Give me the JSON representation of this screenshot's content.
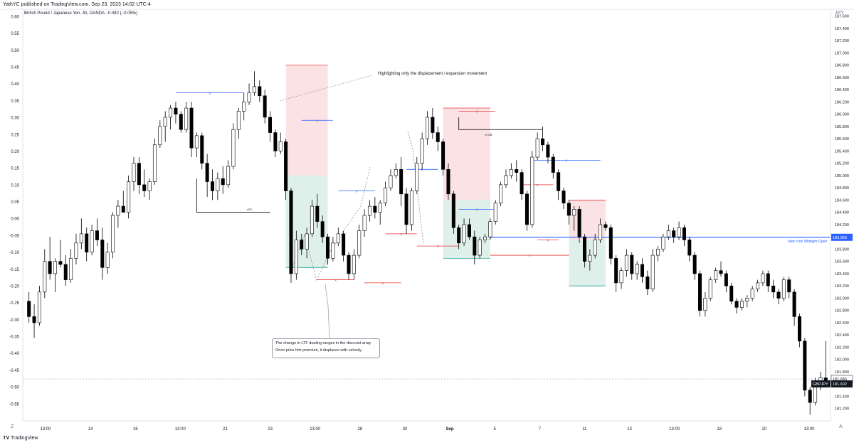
{
  "header": {
    "publisher": "YathYC published on TradingView.com, Sep 23, 2023 14:02 UTC-4"
  },
  "symbol_line": "British Pound / Japanese Yen, 4h, OANDA  −0.082 (−0.05%)",
  "currency": "JPY",
  "bottom_left": "Z",
  "bottom_right": "A",
  "footer": {
    "brand": "TradingView"
  },
  "colors": {
    "up": "#ffffff",
    "down": "#000000",
    "outline": "#000000",
    "premium": "#fbe2e4",
    "discount": "#dff0ea",
    "blue": "#2962ff",
    "red": "#e53935"
  },
  "annotations": {
    "top_note": "Highlighting only the displacement / expansion movement",
    "callout_line1": "The change in LTF dealing ranges in the discount array",
    "callout_line2": "Once price hits premium, it displaces with velocity",
    "ssl_label": "sSC",
    "ob_label": "+4 OB",
    "ny_label": "New York Midnight Open"
  },
  "chart_data": {
    "type": "candlestick",
    "title": "British Pound / Japanese Yen, 4h, OANDA",
    "left_axis": {
      "ylim": [
        -0.6,
        0.62
      ],
      "ticks": [
        "0.60",
        "0.55",
        "0.50",
        "0.45",
        "0.40",
        "0.35",
        "0.30",
        "0.25",
        "0.20",
        "0.15",
        "0.10",
        "0.05",
        "0.00",
        "-0.05",
        "-0.10",
        "-0.15",
        "-0.20",
        "-0.25",
        "-0.30",
        "-0.35",
        "-0.40",
        "-0.45",
        "-0.50",
        "-0.55"
      ]
    },
    "right_axis": {
      "ylim": [
        181.0,
        187.7
      ],
      "ticks": [
        "187.600",
        "187.400",
        "187.200",
        "187.000",
        "186.800",
        "186.600",
        "186.400",
        "186.200",
        "186.000",
        "185.800",
        "185.600",
        "185.400",
        "185.200",
        "185.000",
        "184.800",
        "184.600",
        "184.400",
        "184.200",
        "184.000",
        "183.800",
        "183.600",
        "183.400",
        "183.200",
        "183.000",
        "182.800",
        "182.600",
        "182.400",
        "182.200",
        "182.000",
        "181.800",
        "181.600",
        "181.400",
        "181.200"
      ]
    },
    "x_ticks": [
      "13:00",
      "14",
      "16",
      "13:00",
      "21",
      "23",
      "13:00",
      "28",
      "30",
      "Sep",
      "5",
      "7",
      "11",
      "13",
      "13:00",
      "18",
      "20",
      "13:00"
    ],
    "last_price": {
      "label": "GBPJPY",
      "value": "181.602"
    },
    "prev_price": "181.684",
    "ny_open_price": "183.993",
    "ohlc": [
      [
        182.95,
        183.1,
        182.6,
        182.7
      ],
      [
        182.7,
        182.9,
        182.35,
        182.6
      ],
      [
        182.6,
        183.2,
        182.55,
        183.1
      ],
      [
        183.1,
        183.8,
        183.0,
        183.6
      ],
      [
        183.6,
        184.0,
        183.3,
        183.4
      ],
      [
        183.4,
        183.65,
        183.1,
        183.6
      ],
      [
        183.6,
        183.95,
        183.5,
        183.55
      ],
      [
        183.55,
        183.7,
        183.2,
        183.3
      ],
      [
        183.3,
        183.8,
        183.25,
        183.65
      ],
      [
        183.65,
        184.05,
        183.55,
        183.9
      ],
      [
        183.9,
        184.3,
        183.8,
        184.05
      ],
      [
        184.05,
        184.15,
        183.6,
        183.75
      ],
      [
        183.75,
        184.2,
        183.7,
        184.1
      ],
      [
        184.1,
        184.3,
        183.85,
        183.95
      ],
      [
        183.95,
        184.15,
        183.3,
        183.5
      ],
      [
        183.5,
        183.9,
        183.4,
        183.75
      ],
      [
        183.75,
        184.4,
        183.65,
        184.35
      ],
      [
        184.35,
        184.6,
        184.15,
        184.5
      ],
      [
        184.5,
        184.75,
        184.4,
        184.4
      ],
      [
        184.4,
        185.0,
        184.3,
        184.9
      ],
      [
        184.9,
        185.3,
        184.75,
        185.2
      ],
      [
        185.2,
        185.3,
        184.7,
        184.85
      ],
      [
        184.85,
        185.1,
        184.65,
        184.75
      ],
      [
        184.75,
        184.95,
        184.6,
        184.9
      ],
      [
        184.9,
        185.6,
        184.85,
        185.5
      ],
      [
        185.5,
        185.9,
        185.45,
        185.8
      ],
      [
        185.8,
        186.05,
        185.55,
        185.95
      ],
      [
        185.95,
        186.15,
        185.75,
        186.1
      ],
      [
        186.1,
        186.2,
        185.85,
        186.0
      ],
      [
        186.0,
        186.05,
        185.7,
        185.75
      ],
      [
        185.75,
        186.2,
        185.7,
        186.1
      ],
      [
        186.1,
        186.2,
        185.3,
        185.45
      ],
      [
        185.45,
        185.7,
        185.3,
        185.65
      ],
      [
        185.65,
        185.7,
        185.1,
        185.2
      ],
      [
        185.2,
        185.35,
        184.65,
        184.9
      ],
      [
        184.9,
        185.1,
        184.6,
        184.75
      ],
      [
        184.75,
        185.05,
        184.6,
        184.95
      ],
      [
        184.95,
        185.15,
        184.7,
        184.85
      ],
      [
        184.85,
        185.25,
        184.8,
        185.15
      ],
      [
        185.15,
        185.85,
        185.1,
        185.75
      ],
      [
        185.75,
        186.1,
        185.6,
        186.05
      ],
      [
        186.05,
        186.35,
        185.9,
        186.2
      ],
      [
        186.2,
        186.5,
        186.15,
        186.35
      ],
      [
        186.35,
        186.7,
        186.3,
        186.45
      ],
      [
        186.45,
        186.55,
        186.2,
        186.3
      ],
      [
        186.3,
        186.4,
        185.85,
        185.95
      ],
      [
        185.95,
        186.05,
        185.55,
        185.7
      ],
      [
        185.7,
        185.75,
        185.3,
        185.4
      ],
      [
        185.4,
        185.7,
        185.35,
        185.55
      ],
      [
        185.55,
        185.6,
        184.6,
        184.75
      ],
      [
        184.75,
        184.8,
        183.25,
        183.4
      ],
      [
        183.4,
        184.1,
        183.3,
        183.95
      ],
      [
        183.95,
        184.05,
        183.7,
        183.8
      ],
      [
        183.8,
        184.15,
        183.65,
        184.05
      ],
      [
        184.05,
        184.6,
        184.0,
        184.5
      ],
      [
        184.5,
        184.7,
        184.15,
        184.25
      ],
      [
        184.25,
        184.35,
        183.9,
        184.0
      ],
      [
        184.0,
        184.05,
        183.55,
        183.65
      ],
      [
        183.65,
        184.0,
        183.6,
        183.9
      ],
      [
        183.9,
        184.15,
        183.85,
        184.05
      ],
      [
        184.05,
        184.1,
        183.6,
        183.7
      ],
      [
        183.7,
        183.75,
        183.3,
        183.4
      ],
      [
        183.4,
        183.8,
        183.3,
        183.7
      ],
      [
        183.7,
        184.2,
        183.65,
        184.1
      ],
      [
        184.1,
        184.45,
        184.0,
        184.35
      ],
      [
        184.35,
        184.6,
        184.25,
        184.5
      ],
      [
        184.5,
        184.65,
        184.3,
        184.4
      ],
      [
        184.4,
        184.6,
        184.2,
        184.55
      ],
      [
        184.55,
        184.9,
        184.5,
        184.8
      ],
      [
        184.8,
        185.1,
        184.75,
        185.0
      ],
      [
        185.0,
        185.2,
        184.95,
        185.1
      ],
      [
        185.1,
        185.3,
        184.5,
        184.7
      ],
      [
        184.7,
        184.8,
        184.05,
        184.2
      ],
      [
        184.2,
        184.8,
        184.1,
        184.75
      ],
      [
        184.75,
        185.3,
        184.7,
        185.2
      ],
      [
        185.2,
        185.7,
        185.1,
        185.6
      ],
      [
        185.6,
        186.05,
        185.5,
        185.95
      ],
      [
        185.95,
        186.1,
        185.6,
        185.7
      ],
      [
        185.7,
        185.8,
        185.4,
        185.55
      ],
      [
        185.55,
        185.6,
        185.0,
        185.1
      ],
      [
        185.1,
        185.2,
        184.6,
        184.7
      ],
      [
        184.7,
        184.75,
        184.05,
        184.15
      ],
      [
        184.15,
        184.2,
        183.8,
        183.9
      ],
      [
        183.9,
        184.3,
        183.85,
        184.2
      ],
      [
        184.2,
        184.3,
        183.95,
        184.0
      ],
      [
        184.0,
        184.1,
        183.55,
        183.7
      ],
      [
        183.7,
        184.0,
        183.65,
        183.95
      ],
      [
        183.95,
        184.05,
        183.9,
        184.0
      ],
      [
        184.0,
        184.3,
        183.95,
        184.25
      ],
      [
        184.25,
        184.6,
        184.2,
        184.55
      ],
      [
        184.55,
        184.9,
        184.5,
        184.85
      ],
      [
        184.85,
        185.1,
        184.8,
        185.0
      ],
      [
        185.0,
        185.2,
        184.95,
        185.1
      ],
      [
        185.1,
        185.25,
        184.9,
        185.05
      ],
      [
        185.05,
        185.1,
        184.6,
        184.7
      ],
      [
        184.7,
        184.75,
        184.1,
        184.2
      ],
      [
        184.2,
        185.4,
        184.15,
        185.3
      ],
      [
        185.3,
        185.7,
        185.25,
        185.6
      ],
      [
        185.6,
        185.8,
        185.4,
        185.5
      ],
      [
        185.5,
        185.55,
        185.2,
        185.3
      ],
      [
        185.3,
        185.35,
        184.95,
        185.05
      ],
      [
        185.05,
        185.1,
        184.6,
        184.75
      ],
      [
        184.75,
        184.8,
        184.45,
        184.55
      ],
      [
        184.55,
        184.6,
        184.2,
        184.35
      ],
      [
        184.35,
        184.5,
        184.1,
        184.45
      ],
      [
        184.45,
        184.5,
        183.9,
        184.0
      ],
      [
        184.0,
        184.05,
        183.5,
        183.6
      ],
      [
        183.6,
        183.8,
        183.45,
        183.7
      ],
      [
        183.7,
        184.05,
        183.65,
        183.95
      ],
      [
        183.95,
        184.3,
        183.9,
        184.2
      ],
      [
        184.2,
        184.25,
        184.1,
        184.15
      ],
      [
        184.15,
        184.2,
        183.55,
        183.65
      ],
      [
        183.65,
        183.7,
        183.1,
        183.25
      ],
      [
        183.25,
        183.5,
        183.15,
        183.45
      ],
      [
        183.45,
        183.8,
        183.35,
        183.7
      ],
      [
        183.7,
        183.75,
        183.3,
        183.4
      ],
      [
        183.4,
        183.6,
        183.3,
        183.55
      ],
      [
        183.55,
        183.65,
        183.25,
        183.35
      ],
      [
        183.35,
        183.45,
        183.05,
        183.15
      ],
      [
        183.15,
        183.8,
        183.1,
        183.7
      ],
      [
        183.7,
        183.85,
        183.6,
        183.8
      ],
      [
        183.8,
        184.05,
        183.75,
        184.0
      ],
      [
        184.0,
        184.2,
        183.95,
        184.1
      ],
      [
        184.1,
        184.15,
        183.9,
        184.0
      ],
      [
        184.0,
        184.25,
        183.95,
        184.15
      ],
      [
        184.15,
        184.2,
        183.85,
        183.95
      ],
      [
        183.95,
        184.0,
        183.6,
        183.7
      ],
      [
        183.7,
        183.75,
        183.3,
        183.4
      ],
      [
        183.4,
        183.45,
        182.7,
        182.8
      ],
      [
        182.8,
        183.1,
        182.7,
        183.0
      ],
      [
        183.0,
        183.35,
        182.95,
        183.3
      ],
      [
        183.3,
        183.5,
        183.25,
        183.45
      ],
      [
        183.45,
        183.6,
        183.35,
        183.4
      ],
      [
        183.4,
        183.45,
        183.1,
        183.2
      ],
      [
        183.2,
        183.25,
        182.9,
        182.95
      ],
      [
        182.95,
        183.0,
        182.75,
        182.85
      ],
      [
        182.85,
        183.0,
        182.8,
        182.95
      ],
      [
        182.95,
        183.05,
        182.85,
        183.0
      ],
      [
        183.0,
        183.2,
        182.95,
        183.15
      ],
      [
        183.15,
        183.3,
        183.1,
        183.25
      ],
      [
        183.25,
        183.45,
        183.2,
        183.4
      ],
      [
        183.4,
        183.45,
        183.1,
        183.2
      ],
      [
        183.2,
        183.3,
        183.0,
        183.1
      ],
      [
        183.1,
        183.15,
        182.9,
        183.0
      ],
      [
        183.0,
        183.35,
        182.95,
        183.3
      ],
      [
        183.3,
        183.35,
        183.0,
        183.1
      ],
      [
        183.1,
        183.15,
        182.55,
        182.7
      ],
      [
        182.7,
        182.75,
        182.2,
        182.3
      ],
      [
        182.3,
        182.35,
        181.4,
        181.5
      ],
      [
        181.5,
        181.55,
        181.1,
        181.3
      ],
      [
        181.3,
        181.7,
        181.25,
        181.6
      ],
      [
        181.6,
        181.8,
        181.5,
        181.7
      ],
      [
        181.7,
        182.3,
        181.55,
        181.6
      ]
    ]
  }
}
